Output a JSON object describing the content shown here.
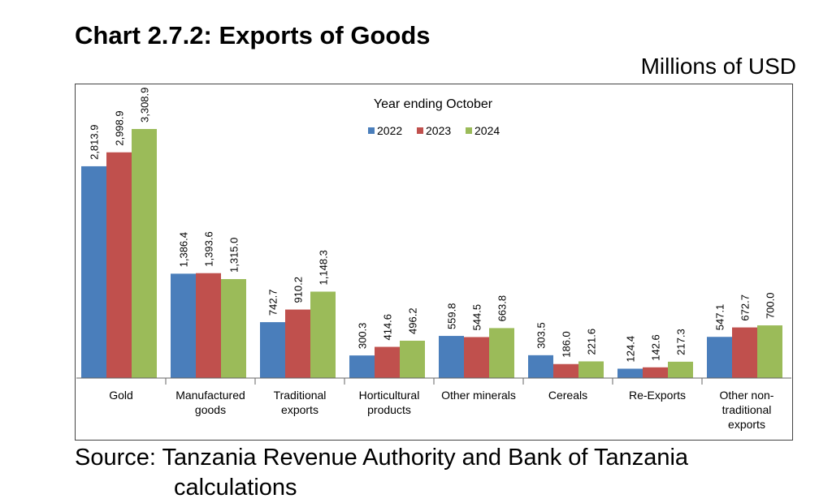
{
  "title": "Chart 2.7.2: Exports of Goods",
  "units": "Millions of USD",
  "source_line1": "Source: Tanzania Revenue Authority and Bank of Tanzania",
  "source_line2": "calculations",
  "chart_data": {
    "type": "bar",
    "legend_title": "Year ending October",
    "legend_position": "top-center",
    "categories": [
      [
        "Gold"
      ],
      [
        "Manufactured",
        "goods"
      ],
      [
        "Traditional",
        "exports"
      ],
      [
        "Horticultural",
        "products"
      ],
      [
        "Other minerals"
      ],
      [
        "Cereals"
      ],
      [
        "Re-Exports"
      ],
      [
        "Other non-",
        "traditional",
        "exports"
      ]
    ],
    "series": [
      {
        "name": "2022",
        "color": "#4a7ebb",
        "values": [
          2813.9,
          1386.4,
          742.7,
          300.3,
          559.8,
          303.5,
          124.4,
          547.1
        ],
        "labels": [
          "2,813.9",
          "1,386.4",
          "742.7",
          "300.3",
          "559.8",
          "303.5",
          "124.4",
          "547.1"
        ]
      },
      {
        "name": "2023",
        "color": "#c0504d",
        "values": [
          2998.9,
          1393.6,
          910.2,
          414.6,
          544.5,
          186.0,
          142.6,
          672.7
        ],
        "labels": [
          "2,998.9",
          "1,393.6",
          "910.2",
          "414.6",
          "544.5",
          "186.0",
          "142.6",
          "672.7"
        ]
      },
      {
        "name": "2024",
        "color": "#9bbb59",
        "values": [
          3308.9,
          1315.0,
          1148.3,
          496.2,
          663.8,
          221.6,
          217.3,
          700.0
        ],
        "labels": [
          "3,308.9",
          "1,315.0",
          "1,148.3",
          "496.2",
          "663.8",
          "221.6",
          "217.3",
          "700.0"
        ]
      }
    ],
    "ylim": [
      0,
      3500
    ],
    "grid": false
  }
}
